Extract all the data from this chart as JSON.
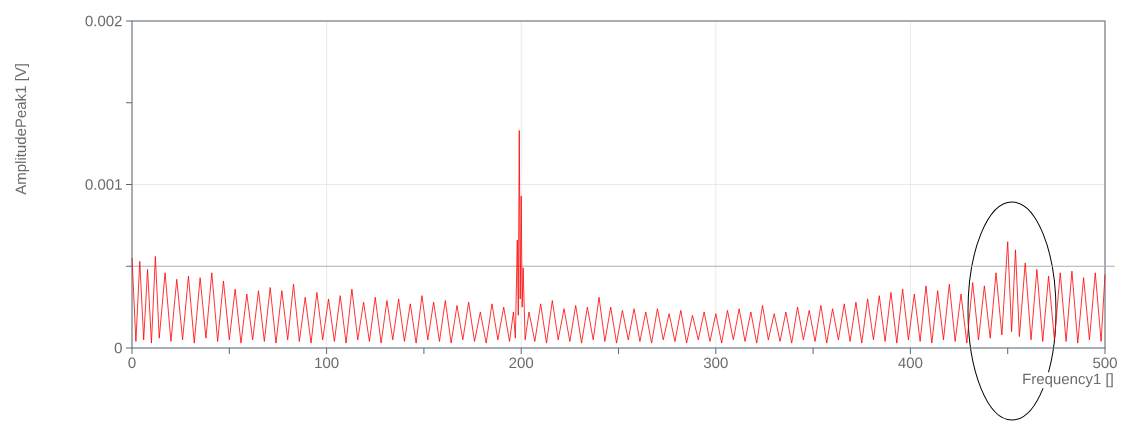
{
  "chart_data": {
    "type": "line",
    "xlabel": "Frequency1 []",
    "ylabel": "AmplitudePeak1 [V]",
    "xlim": [
      0,
      500
    ],
    "ylim": [
      0,
      0.002
    ],
    "xticks": [
      0,
      {
        "value": 50,
        "label": null
      },
      100,
      {
        "value": 150,
        "label": null
      },
      200,
      {
        "value": 250,
        "label": null
      },
      300,
      {
        "value": 350,
        "label": null
      },
      400,
      {
        "value": 450,
        "label": null
      },
      500
    ],
    "yticks": [
      0,
      {
        "value": 0.0005,
        "label": null
      },
      0.001,
      {
        "value": 0.0015,
        "label": null
      },
      0.002
    ],
    "grid": true,
    "ref_lines": [
      {
        "axis": "y",
        "value": 0.0005,
        "color": "#a8b0b8"
      }
    ],
    "series": [
      {
        "color": "#ff0000",
        "x": [
          0,
          2,
          4,
          6,
          8,
          10,
          12,
          14,
          17,
          20,
          23,
          26,
          29,
          32,
          35,
          38,
          41,
          44,
          47,
          50,
          53,
          56,
          59,
          62,
          65,
          68,
          71,
          74,
          77,
          80,
          83,
          86,
          89,
          92,
          95,
          98,
          101,
          104,
          107,
          110,
          113,
          116,
          119,
          122,
          125,
          128,
          131,
          134,
          137,
          140,
          143,
          146,
          149,
          152,
          155,
          158,
          161,
          164,
          167,
          170,
          173,
          176,
          179,
          182,
          185,
          188,
          191,
          194,
          196,
          197,
          198,
          198.5,
          199,
          199.5,
          200,
          200.5,
          201,
          202,
          204,
          207,
          210,
          213,
          216,
          219,
          222,
          225,
          228,
          231,
          234,
          237,
          240,
          243,
          246,
          249,
          252,
          255,
          258,
          261,
          264,
          267,
          270,
          273,
          276,
          279,
          282,
          285,
          288,
          291,
          294,
          297,
          300,
          303,
          306,
          309,
          312,
          315,
          318,
          321,
          324,
          327,
          330,
          333,
          336,
          339,
          342,
          345,
          348,
          351,
          354,
          357,
          360,
          363,
          366,
          369,
          372,
          375,
          378,
          381,
          384,
          387,
          390,
          393,
          396,
          399,
          402,
          405,
          408,
          411,
          414,
          417,
          420,
          423,
          426,
          429,
          432,
          435,
          438,
          441,
          444,
          447,
          450,
          452,
          454,
          456,
          459,
          462,
          465,
          468,
          471,
          474,
          477,
          480,
          483,
          486,
          489,
          492,
          495,
          498,
          500
        ],
        "values": [
          0.00055,
          4e-05,
          0.00053,
          5e-05,
          0.00048,
          3e-05,
          0.00056,
          6e-05,
          0.00046,
          4e-05,
          0.00042,
          5e-05,
          0.00044,
          3e-05,
          0.00043,
          6e-05,
          0.00046,
          4e-05,
          0.00041,
          5e-05,
          0.00036,
          3e-05,
          0.00033,
          5e-05,
          0.00035,
          4e-05,
          0.00037,
          3e-05,
          0.00035,
          5e-05,
          0.00039,
          4e-05,
          0.00031,
          3e-05,
          0.00034,
          5e-05,
          0.0003,
          4e-05,
          0.00032,
          3e-05,
          0.00036,
          5e-05,
          0.00028,
          4e-05,
          0.00031,
          3e-05,
          0.00029,
          5e-05,
          0.0003,
          4e-05,
          0.00027,
          3e-05,
          0.00032,
          5e-05,
          0.00028,
          4e-05,
          0.00029,
          3e-05,
          0.00026,
          5e-05,
          0.00028,
          4e-05,
          0.00022,
          3e-05,
          0.00027,
          5e-05,
          0.00025,
          4e-05,
          0.00022,
          6e-05,
          0.00066,
          0.0002,
          0.00133,
          0.0003,
          0.00093,
          0.00025,
          0.00049,
          5e-05,
          0.00022,
          4e-05,
          0.00027,
          3e-05,
          0.00029,
          5e-05,
          0.00024,
          4e-05,
          0.00026,
          3e-05,
          0.00025,
          5e-05,
          0.00031,
          4e-05,
          0.00025,
          3e-05,
          0.00023,
          5e-05,
          0.00024,
          4e-05,
          0.00022,
          3e-05,
          0.00024,
          5e-05,
          0.00021,
          4e-05,
          0.00023,
          3e-05,
          0.0002,
          5e-05,
          0.00022,
          4e-05,
          0.00021,
          3e-05,
          0.00023,
          5e-05,
          0.00024,
          4e-05,
          0.00022,
          3e-05,
          0.00026,
          5e-05,
          0.00021,
          4e-05,
          0.00022,
          3e-05,
          0.00025,
          5e-05,
          0.00023,
          4e-05,
          0.00026,
          3e-05,
          0.00024,
          5e-05,
          0.00027,
          4e-05,
          0.00028,
          3e-05,
          0.0003,
          5e-05,
          0.00032,
          4e-05,
          0.00034,
          3e-05,
          0.00036,
          5e-05,
          0.00033,
          4e-05,
          0.00038,
          3e-05,
          0.00035,
          5e-05,
          0.00039,
          4e-05,
          0.00033,
          3e-05,
          0.0004,
          5e-05,
          0.00038,
          6e-05,
          0.00046,
          8e-05,
          0.00065,
          0.0001,
          0.0006,
          7e-05,
          0.00052,
          5e-05,
          0.00048,
          4e-05,
          0.00044,
          5e-05,
          0.00046,
          4e-05,
          0.00047,
          3e-05,
          0.00043,
          5e-05,
          0.00046,
          4e-05,
          0.00045
        ]
      }
    ]
  }
}
